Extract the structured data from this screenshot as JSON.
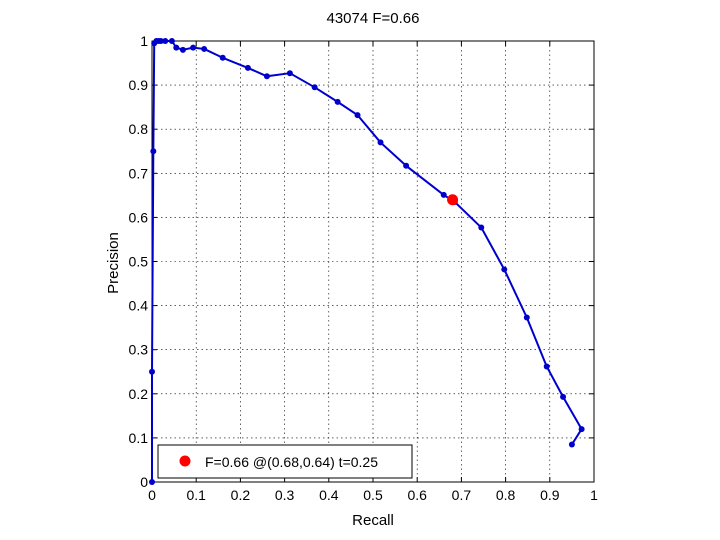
{
  "chart_data": {
    "type": "line",
    "title": "43074 F=0.66",
    "xlabel": "Recall",
    "ylabel": "Precision",
    "xlim": [
      0,
      1
    ],
    "ylim": [
      0,
      1
    ],
    "x_ticks": [
      "0",
      "0.1",
      "0.2",
      "0.3",
      "0.4",
      "0.5",
      "0.6",
      "0.7",
      "0.8",
      "0.9",
      "1"
    ],
    "y_ticks": [
      "0",
      "0.1",
      "0.2",
      "0.3",
      "0.4",
      "0.5",
      "0.6",
      "0.7",
      "0.8",
      "0.9",
      "1"
    ],
    "grid": true,
    "legend": "bottom-left",
    "series": [
      {
        "color": "#0000cc",
        "points": [
          [
            0.0,
            0.0
          ],
          [
            0.0,
            0.25
          ],
          [
            0.003,
            0.75
          ],
          [
            0.005,
            0.995
          ],
          [
            0.01,
            1.0
          ],
          [
            0.015,
            1.0
          ],
          [
            0.02,
            1.0
          ],
          [
            0.03,
            1.0
          ],
          [
            0.045,
            1.0
          ],
          [
            0.055,
            0.985
          ],
          [
            0.07,
            0.98
          ],
          [
            0.093,
            0.985
          ],
          [
            0.118,
            0.982
          ],
          [
            0.16,
            0.962
          ],
          [
            0.217,
            0.939
          ],
          [
            0.26,
            0.92
          ],
          [
            0.312,
            0.927
          ],
          [
            0.368,
            0.895
          ],
          [
            0.42,
            0.862
          ],
          [
            0.465,
            0.832
          ],
          [
            0.517,
            0.77
          ],
          [
            0.575,
            0.717
          ],
          [
            0.66,
            0.651
          ],
          [
            0.685,
            0.635
          ],
          [
            0.745,
            0.577
          ],
          [
            0.797,
            0.482
          ],
          [
            0.848,
            0.373
          ],
          [
            0.893,
            0.262
          ],
          [
            0.93,
            0.193
          ],
          [
            0.972,
            0.12
          ],
          [
            0.95,
            0.085
          ]
        ]
      }
    ],
    "highlight": {
      "color": "#ff0000",
      "x": 0.68,
      "y": 0.64,
      "label": "F=0.66 @(0.68,0.64) t=0.25"
    }
  }
}
